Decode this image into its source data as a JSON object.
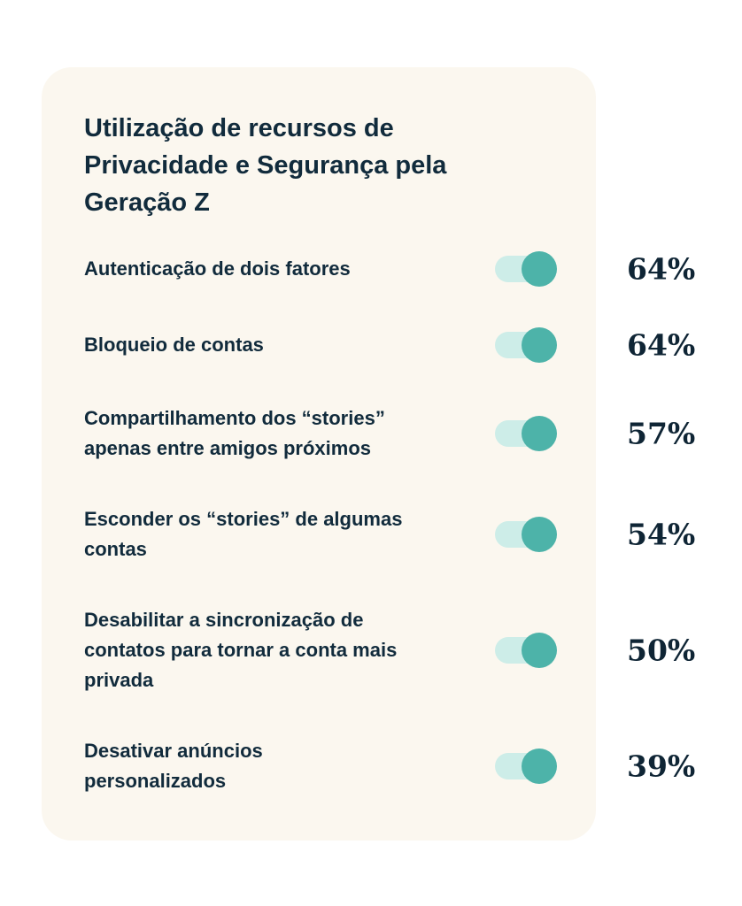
{
  "card": {
    "title": "Utilização de recursos de\nPrivacidade e Segurança pela\nGeração Z",
    "background_color": "#FBF7EF",
    "text_color": "#112B3C",
    "toggle": {
      "state": "on",
      "track_color": "#CDEDE8",
      "knob_color": "#4DB3A9"
    },
    "items": [
      {
        "label": "Autenticação de dois fatores",
        "percent": "64%"
      },
      {
        "label": "Bloqueio de contas",
        "percent": "64%"
      },
      {
        "label": "Compartilhamento dos “stories”\napenas entre amigos próximos",
        "percent": "57%"
      },
      {
        "label": "Esconder os “stories” de algumas\ncontas",
        "percent": "54%"
      },
      {
        "label": "Desabilitar a sincronização de\ncontatos para tornar a conta mais\nprivada",
        "percent": "50%"
      },
      {
        "label": "Desativar anúncios\npersonalizados",
        "percent": "39%"
      }
    ]
  },
  "chart_data": {
    "type": "table",
    "title": "Utilização de recursos de Privacidade e Segurança pela Geração Z",
    "categories": [
      "Autenticação de dois fatores",
      "Bloqueio de contas",
      "Compartilhamento dos “stories” apenas entre amigos próximos",
      "Esconder os “stories” de algumas contas",
      "Desabilitar a sincronização de contatos para tornar a conta mais privada",
      "Desativar anúncios personalizados"
    ],
    "values": [
      64,
      64,
      57,
      54,
      50,
      39
    ],
    "unit": "%",
    "value_range": [
      0,
      100
    ],
    "legend": "none",
    "notes": "Each row shows an enabled toggle switch and the adoption percentage to the right of the card"
  }
}
